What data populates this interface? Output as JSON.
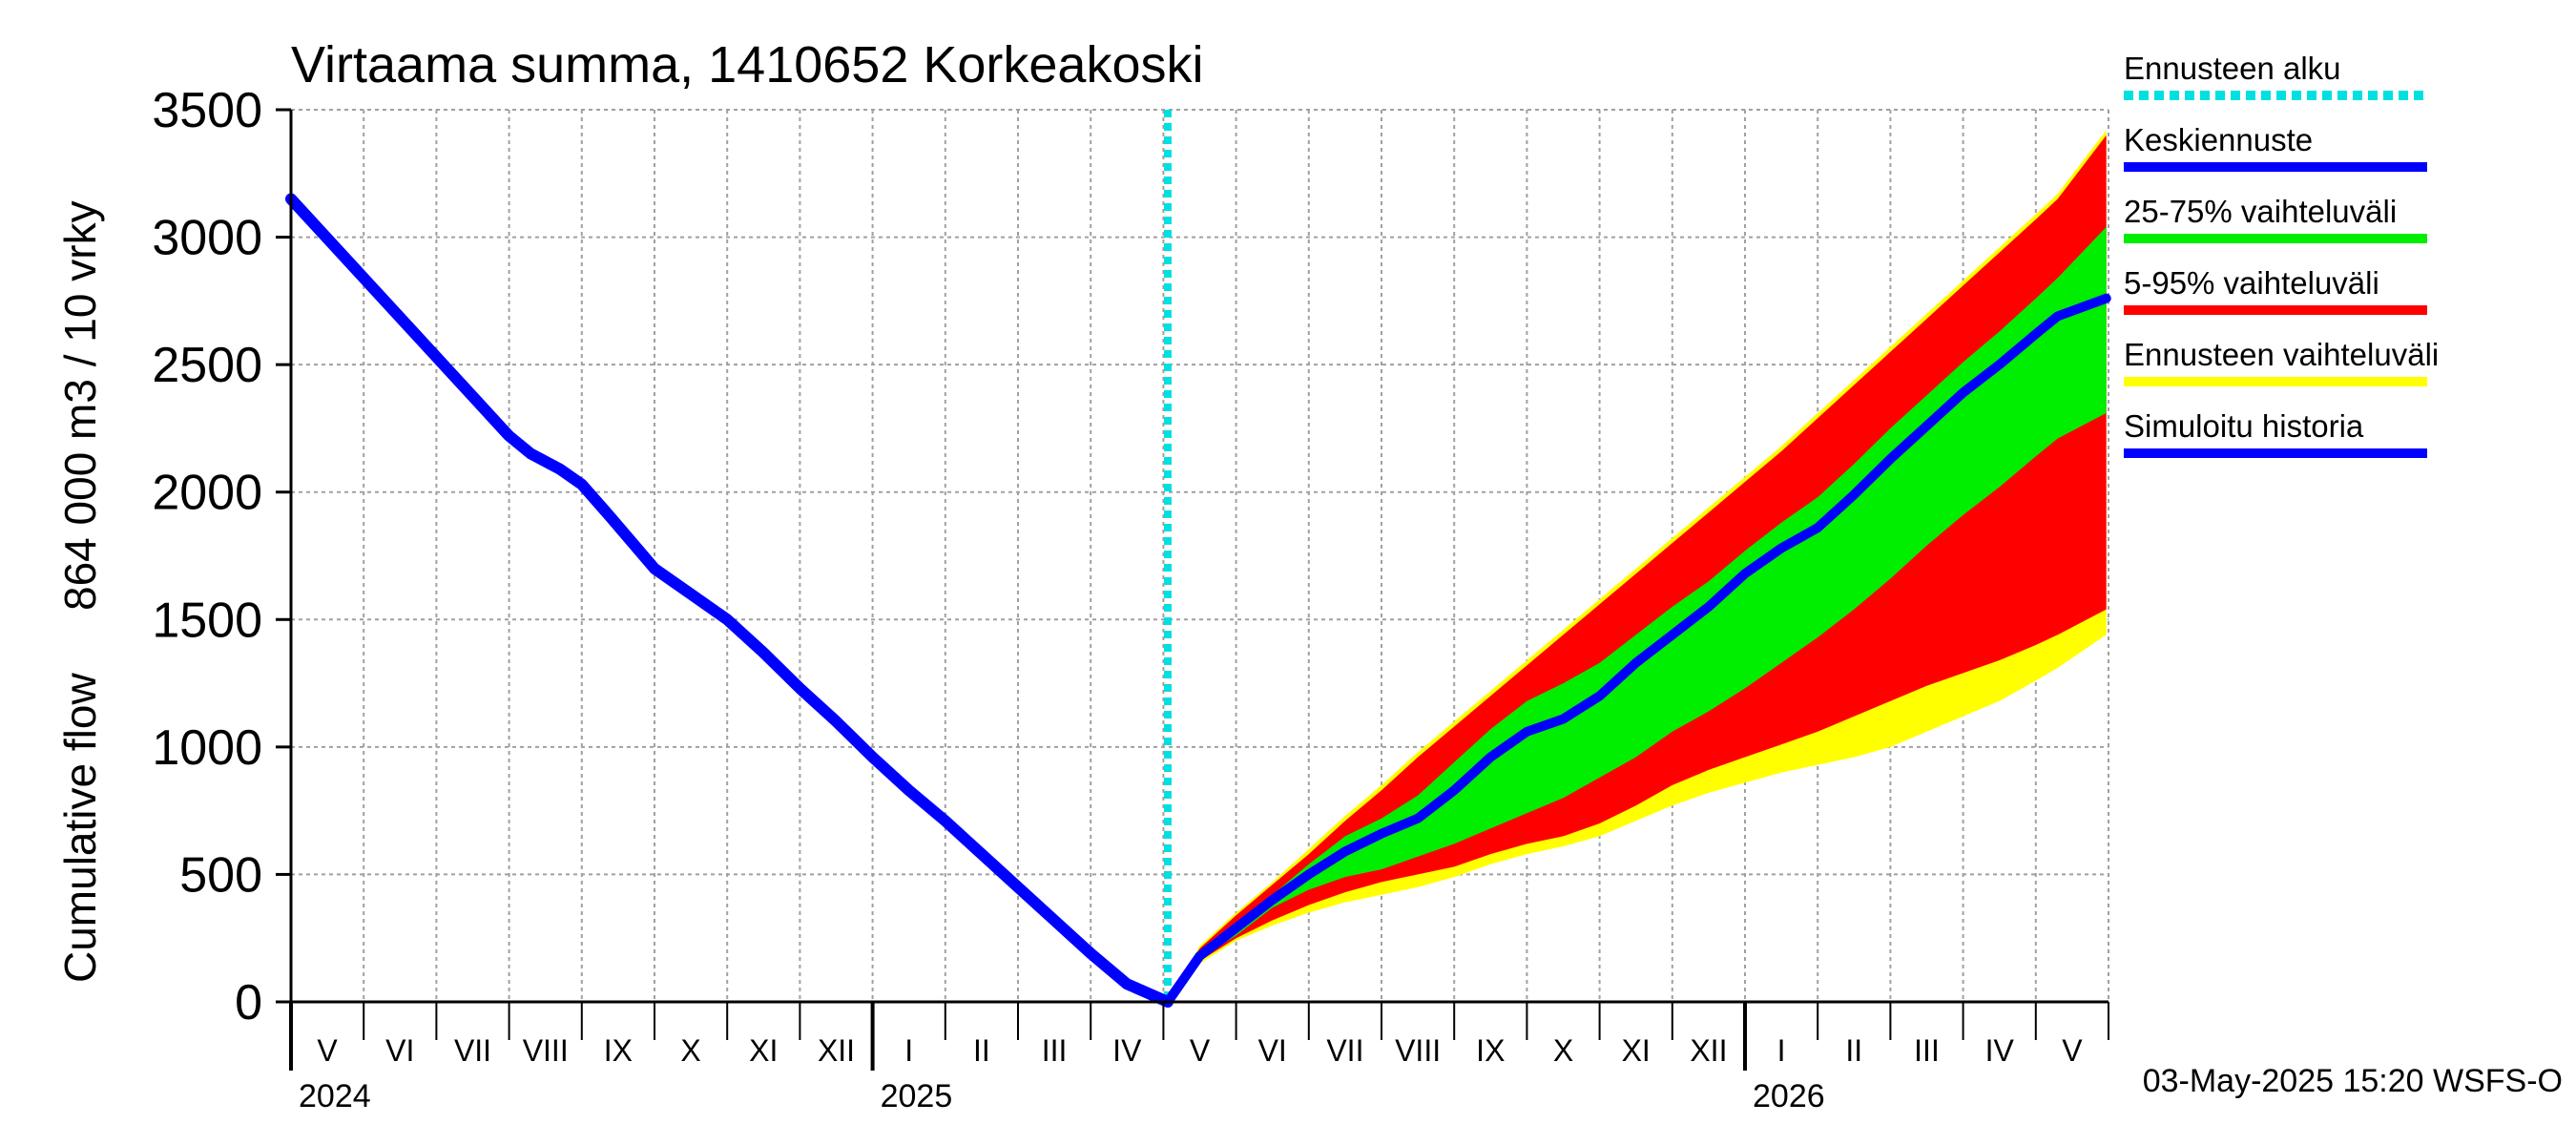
{
  "chart_data": {
    "type": "area",
    "title": "Virtaama summa, 1410652 Korkeakoski",
    "ylabel_line1": "Cumulative flow",
    "ylabel_line2": "864 000 m3 / 10 vrky",
    "ylim": [
      0,
      3500
    ],
    "yticks": [
      0,
      500,
      1000,
      1500,
      2000,
      2500,
      3000,
      3500
    ],
    "x_start": "2024-05-01",
    "x_end": "2026-05-31",
    "forecast_start": "2025-05-03",
    "months": [
      {
        "label": "V",
        "start": 0
      },
      {
        "label": "VI",
        "start": 1
      },
      {
        "label": "VII",
        "start": 2
      },
      {
        "label": "VIII",
        "start": 3
      },
      {
        "label": "IX",
        "start": 4
      },
      {
        "label": "X",
        "start": 5
      },
      {
        "label": "XI",
        "start": 6
      },
      {
        "label": "XII",
        "start": 7
      },
      {
        "label": "I",
        "start": 8
      },
      {
        "label": "II",
        "start": 9
      },
      {
        "label": "III",
        "start": 10
      },
      {
        "label": "IV",
        "start": 11
      },
      {
        "label": "V",
        "start": 12
      },
      {
        "label": "VI",
        "start": 13
      },
      {
        "label": "VII",
        "start": 14
      },
      {
        "label": "VIII",
        "start": 15
      },
      {
        "label": "IX",
        "start": 16
      },
      {
        "label": "X",
        "start": 17
      },
      {
        "label": "XI",
        "start": 18
      },
      {
        "label": "XII",
        "start": 19
      },
      {
        "label": "I",
        "start": 20
      },
      {
        "label": "II",
        "start": 21
      },
      {
        "label": "III",
        "start": 22
      },
      {
        "label": "IV",
        "start": 23
      },
      {
        "label": "V",
        "start": 24
      }
    ],
    "years": [
      {
        "label": "2024",
        "month_index": 0
      },
      {
        "label": "2025",
        "month_index": 8
      },
      {
        "label": "2026",
        "month_index": 20
      }
    ],
    "x_unit": "months since 2024-05-01",
    "history": {
      "name": "Simuloitu historia",
      "x": [
        0,
        1,
        2,
        3,
        3.3,
        3.7,
        4.0,
        4.4,
        5.0,
        5.5,
        6.0,
        6.5,
        7.0,
        7.5,
        8.0,
        8.5,
        9.0,
        9.5,
        10.0,
        10.5,
        11.0,
        11.5,
        12.06
      ],
      "y": [
        3150,
        2840,
        2530,
        2220,
        2150,
        2090,
        2030,
        1900,
        1700,
        1600,
        1500,
        1370,
        1230,
        1100,
        960,
        830,
        710,
        580,
        450,
        320,
        190,
        70,
        0
      ]
    },
    "forecast_x": [
      12.06,
      12.5,
      13,
      13.5,
      14,
      14.5,
      15,
      15.5,
      16,
      16.5,
      17,
      17.5,
      18,
      18.5,
      19,
      19.5,
      20,
      20.5,
      21,
      21.5,
      22,
      22.5,
      23,
      23.5,
      24,
      24.3,
      24.97
    ],
    "forecast_mean": {
      "name": "Keskiennuste",
      "y": [
        0,
        180,
        290,
        400,
        500,
        590,
        660,
        720,
        830,
        960,
        1060,
        1110,
        1200,
        1330,
        1440,
        1550,
        1680,
        1780,
        1860,
        1990,
        2130,
        2260,
        2390,
        2500,
        2620,
        2690,
        2760
      ]
    },
    "range_25_75": {
      "name": "25-75% vaihteluväli",
      "lower": [
        0,
        170,
        260,
        370,
        440,
        490,
        520,
        570,
        620,
        680,
        740,
        800,
        880,
        960,
        1060,
        1140,
        1230,
        1330,
        1430,
        1540,
        1660,
        1790,
        1910,
        2020,
        2140,
        2210,
        2310
      ],
      "upper": [
        0,
        200,
        310,
        420,
        540,
        650,
        720,
        810,
        940,
        1070,
        1180,
        1250,
        1330,
        1440,
        1550,
        1650,
        1770,
        1880,
        1980,
        2110,
        2250,
        2380,
        2510,
        2630,
        2760,
        2840,
        3040
      ]
    },
    "range_5_95": {
      "name": "5-95% vaihteluväli",
      "lower": [
        0,
        160,
        250,
        320,
        380,
        430,
        470,
        500,
        530,
        580,
        620,
        650,
        700,
        770,
        850,
        910,
        960,
        1010,
        1060,
        1120,
        1180,
        1240,
        1290,
        1340,
        1400,
        1440,
        1540
      ],
      "upper": [
        0,
        210,
        340,
        460,
        580,
        710,
        830,
        960,
        1080,
        1200,
        1320,
        1440,
        1560,
        1680,
        1800,
        1920,
        2040,
        2160,
        2290,
        2420,
        2550,
        2680,
        2810,
        2940,
        3070,
        3150,
        3400
      ]
    },
    "range_full": {
      "name": "Ennusteen vaihteluväli",
      "lower": [
        0,
        150,
        240,
        300,
        350,
        390,
        420,
        450,
        490,
        540,
        580,
        610,
        650,
        710,
        770,
        820,
        860,
        900,
        930,
        960,
        1000,
        1060,
        1120,
        1180,
        1260,
        1310,
        1440
      ],
      "upper": [
        0,
        220,
        350,
        470,
        600,
        730,
        850,
        980,
        1100,
        1220,
        1340,
        1460,
        1580,
        1700,
        1820,
        1940,
        2060,
        2180,
        2310,
        2440,
        2570,
        2700,
        2830,
        2960,
        3090,
        3170,
        3420
      ]
    }
  },
  "legend": [
    {
      "label": "Ennusteen alku",
      "color": "#00e0e0",
      "style": "dotted"
    },
    {
      "label": "Keskiennuste",
      "color": "#0000ff",
      "style": "solid"
    },
    {
      "label": "25-75% vaihteluväli",
      "color": "#00ee00",
      "style": "solid"
    },
    {
      "label": "5-95% vaihteluväli",
      "color": "#ff0000",
      "style": "solid"
    },
    {
      "label": "Ennusteen vaihteluväli",
      "color": "#ffff00",
      "style": "solid"
    },
    {
      "label": "Simuloitu historia",
      "color": "#0000ff",
      "style": "solid"
    }
  ],
  "colors": {
    "history": "#0000ff",
    "mean": "#0000ff",
    "range_25_75": "#00ee00",
    "range_5_95": "#ff0000",
    "range_full": "#ffff00",
    "forecast_start": "#00e0e0",
    "grid": "#a0a0a0",
    "axis": "#000000"
  },
  "footer": "03-May-2025 15:20 WSFS-O"
}
